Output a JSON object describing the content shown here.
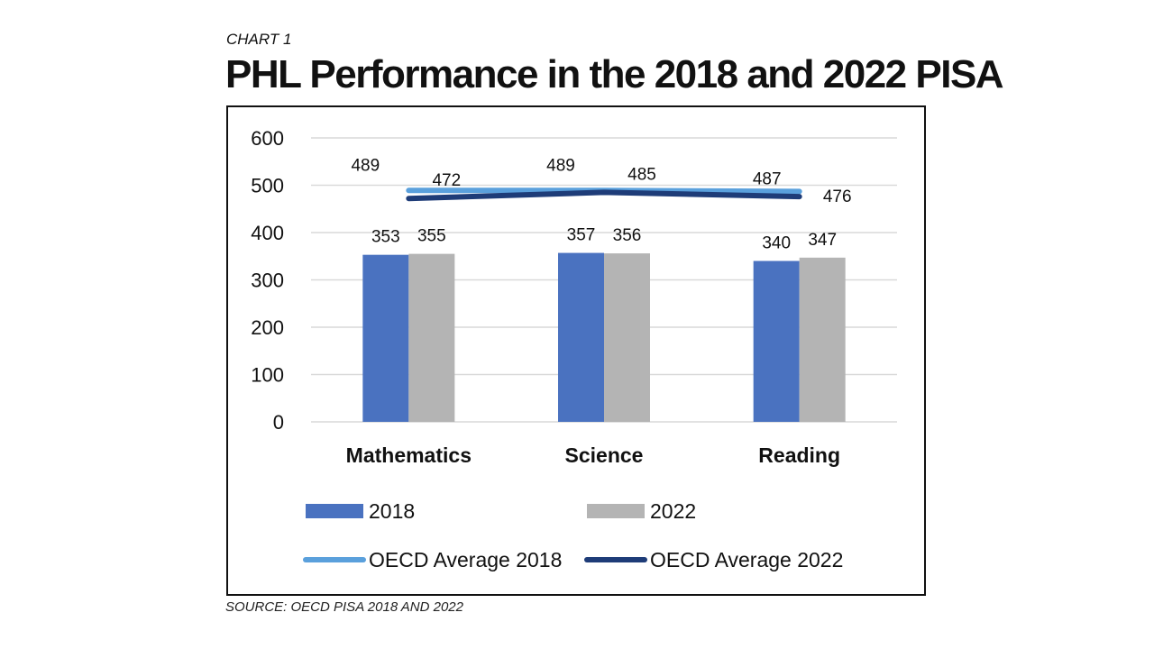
{
  "header": {
    "kicker": "CHART 1",
    "title": "PHL Performance in the 2018 and 2022 PISA"
  },
  "footer": {
    "source": "SOURCE: OECD PISA 2018 AND 2022"
  },
  "colors": {
    "bar_2018": "#4a72c0",
    "bar_2022": "#b4b4b4",
    "oecd_2018": "#5aa0dc",
    "oecd_2022": "#1e3c78",
    "grid": "#d9d9d9"
  },
  "chart_data": {
    "type": "bar",
    "categories": [
      "Mathematics",
      "Science",
      "Reading"
    ],
    "ylim": [
      0,
      600
    ],
    "yticks": [
      0,
      100,
      200,
      300,
      400,
      500,
      600
    ],
    "grid": true,
    "legend_position": "bottom",
    "series": [
      {
        "name": "2018",
        "kind": "bar",
        "values": [
          353,
          357,
          340
        ],
        "color": "#4a72c0"
      },
      {
        "name": "2022",
        "kind": "bar",
        "values": [
          355,
          356,
          347
        ],
        "color": "#b4b4b4"
      },
      {
        "name": "OECD Average 2018",
        "kind": "line",
        "values": [
          489,
          489,
          487
        ],
        "color": "#5aa0dc"
      },
      {
        "name": "OECD Average 2022",
        "kind": "line",
        "values": [
          472,
          485,
          476
        ],
        "color": "#1e3c78"
      }
    ]
  }
}
